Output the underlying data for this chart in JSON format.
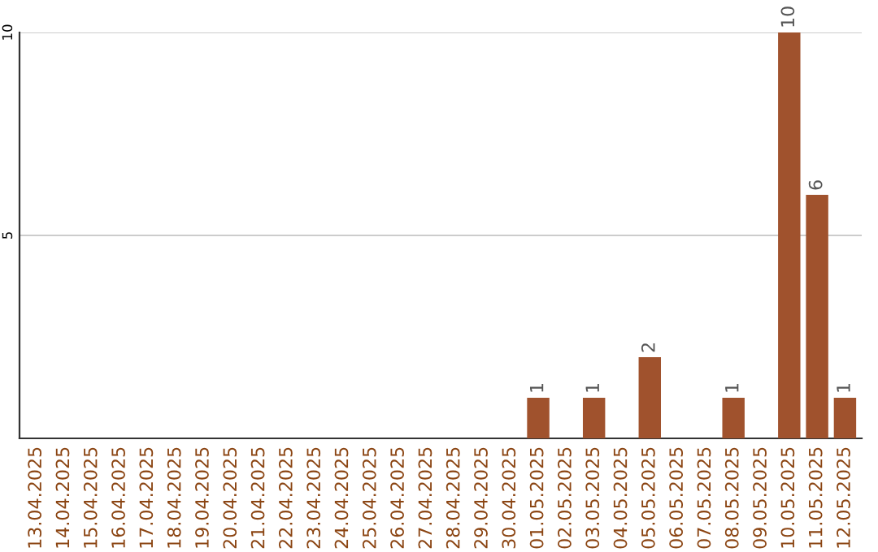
{
  "chart_data": {
    "type": "bar",
    "categories": [
      "13.04.2025",
      "14.04.2025",
      "15.04.2025",
      "16.04.2025",
      "17.04.2025",
      "18.04.2025",
      "19.04.2025",
      "20.04.2025",
      "21.04.2025",
      "22.04.2025",
      "23.04.2025",
      "24.04.2025",
      "25.04.2025",
      "26.04.2025",
      "27.04.2025",
      "28.04.2025",
      "29.04.2025",
      "30.04.2025",
      "01.05.2025",
      "02.05.2025",
      "03.05.2025",
      "04.05.2025",
      "05.05.2025",
      "06.05.2025",
      "07.05.2025",
      "08.05.2025",
      "09.05.2025",
      "10.05.2025",
      "11.05.2025",
      "12.05.2025"
    ],
    "values": [
      0,
      0,
      0,
      0,
      0,
      0,
      0,
      0,
      0,
      0,
      0,
      0,
      0,
      0,
      0,
      0,
      0,
      0,
      1,
      0,
      1,
      0,
      2,
      0,
      0,
      1,
      0,
      10,
      6,
      1
    ],
    "value_labels": [
      null,
      null,
      null,
      null,
      null,
      null,
      null,
      null,
      null,
      null,
      null,
      null,
      null,
      null,
      null,
      null,
      null,
      null,
      "1",
      null,
      "1",
      null,
      "2",
      null,
      null,
      "1",
      null,
      "10",
      "6",
      "1"
    ],
    "color": "#a0522d",
    "ylim": [
      0,
      10
    ],
    "yticks": [
      5,
      10
    ],
    "grid": "y"
  }
}
